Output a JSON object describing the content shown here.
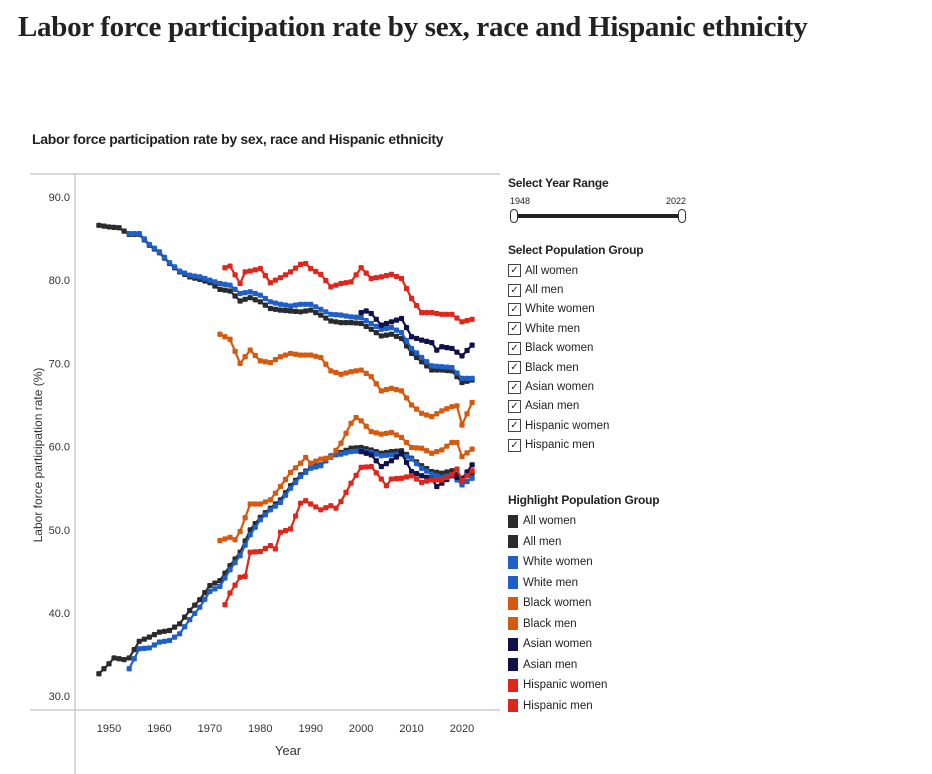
{
  "page_title": "Labor force participation rate by sex, race and Hispanic ethnicity",
  "controls": {
    "year_range_label": "Select Year Range",
    "year_min": "1948",
    "year_max": "2022",
    "population_label": "Select Population Group",
    "groups": [
      "All women",
      "All men",
      "White women",
      "White men",
      "Black women",
      "Black men",
      "Asian women",
      "Asian men",
      "Hispanic women",
      "Hispanic men"
    ],
    "highlight_label": "Highlight Population Group"
  },
  "chart_data": {
    "type": "line",
    "title": "Labor force participation rate by sex, race and Hispanic ethnicity",
    "xlabel": "Year",
    "ylabel": "Labor force participation rate (%)",
    "xlim": [
      1945,
      2025
    ],
    "ylim": [
      28,
      92
    ],
    "xticks": [
      "1950",
      "1960",
      "1970",
      "1980",
      "1990",
      "2000",
      "2010",
      "2020"
    ],
    "yticks": [
      "30.0",
      "40.0",
      "50.0",
      "60.0",
      "70.0",
      "80.0",
      "90.0"
    ],
    "grid": false,
    "series": [
      {
        "name": "All women",
        "color": "#2b2b2b",
        "points": [
          [
            1948,
            32.7
          ],
          [
            1950,
            33.9
          ],
          [
            1951,
            34.6
          ],
          [
            1953,
            34.4
          ],
          [
            1954,
            34.6
          ],
          [
            1956,
            36.6
          ],
          [
            1958,
            37.1
          ],
          [
            1960,
            37.7
          ],
          [
            1962,
            37.9
          ],
          [
            1964,
            38.7
          ],
          [
            1966,
            40.3
          ],
          [
            1968,
            41.6
          ],
          [
            1970,
            43.3
          ],
          [
            1972,
            43.9
          ],
          [
            1974,
            45.7
          ],
          [
            1976,
            47.3
          ],
          [
            1978,
            50.0
          ],
          [
            1980,
            51.5
          ],
          [
            1982,
            52.6
          ],
          [
            1984,
            53.6
          ],
          [
            1986,
            55.3
          ],
          [
            1988,
            56.6
          ],
          [
            1990,
            57.5
          ],
          [
            1992,
            57.8
          ],
          [
            1994,
            58.8
          ],
          [
            1996,
            59.3
          ],
          [
            1998,
            59.8
          ],
          [
            2000,
            59.9
          ],
          [
            2002,
            59.6
          ],
          [
            2004,
            59.2
          ],
          [
            2006,
            59.4
          ],
          [
            2008,
            59.5
          ],
          [
            2010,
            58.6
          ],
          [
            2012,
            57.7
          ],
          [
            2014,
            57.0
          ],
          [
            2016,
            56.8
          ],
          [
            2018,
            57.1
          ],
          [
            2020,
            56.2
          ],
          [
            2022,
            56.8
          ]
        ]
      },
      {
        "name": "All men",
        "color": "#2b2b2b",
        "points": [
          [
            1948,
            86.6
          ],
          [
            1950,
            86.4
          ],
          [
            1952,
            86.3
          ],
          [
            1954,
            85.5
          ],
          [
            1956,
            85.5
          ],
          [
            1958,
            84.2
          ],
          [
            1960,
            83.3
          ],
          [
            1962,
            82.0
          ],
          [
            1964,
            81.0
          ],
          [
            1966,
            80.4
          ],
          [
            1968,
            80.1
          ],
          [
            1970,
            79.7
          ],
          [
            1972,
            78.9
          ],
          [
            1974,
            78.7
          ],
          [
            1976,
            77.5
          ],
          [
            1978,
            77.9
          ],
          [
            1980,
            77.4
          ],
          [
            1982,
            76.6
          ],
          [
            1984,
            76.4
          ],
          [
            1986,
            76.3
          ],
          [
            1988,
            76.2
          ],
          [
            1990,
            76.4
          ],
          [
            1992,
            75.8
          ],
          [
            1994,
            75.1
          ],
          [
            1996,
            74.9
          ],
          [
            1998,
            74.9
          ],
          [
            2000,
            74.8
          ],
          [
            2002,
            74.1
          ],
          [
            2004,
            73.3
          ],
          [
            2006,
            73.5
          ],
          [
            2008,
            73.0
          ],
          [
            2010,
            71.2
          ],
          [
            2012,
            70.2
          ],
          [
            2014,
            69.2
          ],
          [
            2016,
            69.2
          ],
          [
            2018,
            69.1
          ],
          [
            2020,
            67.7
          ],
          [
            2022,
            68.0
          ]
        ]
      },
      {
        "name": "White women",
        "color": "#1f5fc8",
        "points": [
          [
            1954,
            33.3
          ],
          [
            1955,
            34.5
          ],
          [
            1956,
            35.7
          ],
          [
            1958,
            35.8
          ],
          [
            1960,
            36.5
          ],
          [
            1962,
            36.7
          ],
          [
            1964,
            37.5
          ],
          [
            1966,
            39.2
          ],
          [
            1968,
            40.7
          ],
          [
            1970,
            42.6
          ],
          [
            1972,
            43.2
          ],
          [
            1974,
            45.2
          ],
          [
            1976,
            46.9
          ],
          [
            1978,
            49.4
          ],
          [
            1980,
            51.2
          ],
          [
            1982,
            52.4
          ],
          [
            1984,
            53.3
          ],
          [
            1986,
            55.0
          ],
          [
            1988,
            56.4
          ],
          [
            1990,
            57.4
          ],
          [
            1992,
            57.7
          ],
          [
            1994,
            58.9
          ],
          [
            1996,
            59.1
          ],
          [
            1998,
            59.4
          ],
          [
            2000,
            59.5
          ],
          [
            2002,
            59.3
          ],
          [
            2004,
            58.9
          ],
          [
            2006,
            59.0
          ],
          [
            2008,
            59.1
          ],
          [
            2010,
            58.5
          ],
          [
            2012,
            57.4
          ],
          [
            2014,
            56.7
          ],
          [
            2016,
            56.3
          ],
          [
            2018,
            56.6
          ],
          [
            2020,
            55.4
          ],
          [
            2022,
            56.2
          ]
        ]
      },
      {
        "name": "White men",
        "color": "#1f5fc8",
        "points": [
          [
            1954,
            85.6
          ],
          [
            1956,
            85.6
          ],
          [
            1958,
            84.3
          ],
          [
            1960,
            83.4
          ],
          [
            1962,
            82.1
          ],
          [
            1964,
            81.1
          ],
          [
            1966,
            80.6
          ],
          [
            1968,
            80.4
          ],
          [
            1970,
            80.0
          ],
          [
            1972,
            79.6
          ],
          [
            1974,
            79.4
          ],
          [
            1976,
            78.4
          ],
          [
            1978,
            78.6
          ],
          [
            1980,
            78.2
          ],
          [
            1982,
            77.4
          ],
          [
            1984,
            77.1
          ],
          [
            1986,
            76.9
          ],
          [
            1988,
            77.1
          ],
          [
            1990,
            77.1
          ],
          [
            1992,
            76.5
          ],
          [
            1994,
            75.9
          ],
          [
            1996,
            75.8
          ],
          [
            1998,
            75.6
          ],
          [
            2000,
            75.5
          ],
          [
            2002,
            74.8
          ],
          [
            2004,
            74.1
          ],
          [
            2006,
            74.3
          ],
          [
            2008,
            73.7
          ],
          [
            2010,
            71.8
          ],
          [
            2012,
            70.7
          ],
          [
            2014,
            69.7
          ],
          [
            2016,
            69.6
          ],
          [
            2018,
            69.5
          ],
          [
            2020,
            68.2
          ],
          [
            2022,
            68.2
          ]
        ]
      },
      {
        "name": "Black women",
        "color": "#d55a0f",
        "points": [
          [
            1972,
            48.7
          ],
          [
            1974,
            49.1
          ],
          [
            1975,
            48.8
          ],
          [
            1976,
            49.8
          ],
          [
            1978,
            53.1
          ],
          [
            1980,
            53.1
          ],
          [
            1982,
            53.6
          ],
          [
            1984,
            55.2
          ],
          [
            1986,
            56.9
          ],
          [
            1988,
            58.0
          ],
          [
            1989,
            58.7
          ],
          [
            1990,
            58.0
          ],
          [
            1992,
            58.5
          ],
          [
            1994,
            58.7
          ],
          [
            1996,
            60.4
          ],
          [
            1998,
            62.8
          ],
          [
            1999,
            63.5
          ],
          [
            2000,
            63.1
          ],
          [
            2002,
            61.8
          ],
          [
            2004,
            61.5
          ],
          [
            2006,
            61.7
          ],
          [
            2008,
            61.1
          ],
          [
            2010,
            59.9
          ],
          [
            2012,
            59.8
          ],
          [
            2014,
            59.2
          ],
          [
            2016,
            59.6
          ],
          [
            2018,
            60.5
          ],
          [
            2019,
            60.5
          ],
          [
            2020,
            58.8
          ],
          [
            2022,
            59.7
          ]
        ]
      },
      {
        "name": "Black men",
        "color": "#d55a0f",
        "points": [
          [
            1972,
            73.5
          ],
          [
            1974,
            72.9
          ],
          [
            1976,
            70.0
          ],
          [
            1978,
            71.6
          ],
          [
            1980,
            70.3
          ],
          [
            1982,
            70.1
          ],
          [
            1984,
            70.8
          ],
          [
            1986,
            71.2
          ],
          [
            1988,
            71.0
          ],
          [
            1990,
            71.0
          ],
          [
            1992,
            70.7
          ],
          [
            1994,
            69.1
          ],
          [
            1996,
            68.7
          ],
          [
            1998,
            69.0
          ],
          [
            2000,
            69.2
          ],
          [
            2002,
            68.4
          ],
          [
            2004,
            66.7
          ],
          [
            2006,
            67.0
          ],
          [
            2008,
            66.7
          ],
          [
            2010,
            65.0
          ],
          [
            2012,
            64.0
          ],
          [
            2014,
            63.6
          ],
          [
            2016,
            64.3
          ],
          [
            2018,
            64.8
          ],
          [
            2019,
            64.9
          ],
          [
            2020,
            62.6
          ],
          [
            2022,
            65.3
          ]
        ]
      },
      {
        "name": "Asian women",
        "color": "#10104a",
        "points": [
          [
            2000,
            59.4
          ],
          [
            2002,
            59.0
          ],
          [
            2004,
            57.6
          ],
          [
            2006,
            58.3
          ],
          [
            2008,
            59.2
          ],
          [
            2010,
            57.0
          ],
          [
            2012,
            56.5
          ],
          [
            2014,
            56.1
          ],
          [
            2015,
            55.2
          ],
          [
            2016,
            55.6
          ],
          [
            2018,
            56.5
          ],
          [
            2020,
            56.1
          ],
          [
            2022,
            57.8
          ]
        ]
      },
      {
        "name": "Asian men",
        "color": "#10104a",
        "points": [
          [
            2000,
            76.1
          ],
          [
            2001,
            76.3
          ],
          [
            2002,
            76.0
          ],
          [
            2004,
            74.6
          ],
          [
            2006,
            75.0
          ],
          [
            2008,
            75.4
          ],
          [
            2010,
            73.2
          ],
          [
            2012,
            72.8
          ],
          [
            2014,
            72.5
          ],
          [
            2015,
            71.6
          ],
          [
            2016,
            72.0
          ],
          [
            2018,
            71.8
          ],
          [
            2020,
            70.9
          ],
          [
            2022,
            72.2
          ]
        ]
      },
      {
        "name": "Hispanic women",
        "color": "#e0261b",
        "points": [
          [
            1973,
            41.0
          ],
          [
            1974,
            42.4
          ],
          [
            1976,
            44.3
          ],
          [
            1977,
            44.4
          ],
          [
            1978,
            47.3
          ],
          [
            1980,
            47.4
          ],
          [
            1982,
            48.1
          ],
          [
            1983,
            47.7
          ],
          [
            1984,
            49.7
          ],
          [
            1986,
            50.1
          ],
          [
            1988,
            53.2
          ],
          [
            1989,
            53.5
          ],
          [
            1990,
            53.1
          ],
          [
            1992,
            52.4
          ],
          [
            1994,
            52.9
          ],
          [
            1995,
            52.6
          ],
          [
            1996,
            53.4
          ],
          [
            1998,
            55.6
          ],
          [
            2000,
            57.5
          ],
          [
            2002,
            57.6
          ],
          [
            2004,
            56.1
          ],
          [
            2005,
            55.3
          ],
          [
            2006,
            56.1
          ],
          [
            2008,
            56.2
          ],
          [
            2010,
            56.5
          ],
          [
            2012,
            55.7
          ],
          [
            2014,
            56.0
          ],
          [
            2016,
            56.0
          ],
          [
            2018,
            56.6
          ],
          [
            2019,
            57.3
          ],
          [
            2020,
            55.9
          ],
          [
            2022,
            57.1
          ]
        ]
      },
      {
        "name": "Hispanic men",
        "color": "#e0261b",
        "points": [
          [
            1973,
            81.5
          ],
          [
            1974,
            81.7
          ],
          [
            1976,
            79.6
          ],
          [
            1977,
            81.0
          ],
          [
            1978,
            81.1
          ],
          [
            1980,
            81.4
          ],
          [
            1982,
            79.7
          ],
          [
            1984,
            80.3
          ],
          [
            1986,
            81.0
          ],
          [
            1988,
            81.9
          ],
          [
            1989,
            82.0
          ],
          [
            1990,
            81.4
          ],
          [
            1992,
            80.7
          ],
          [
            1994,
            79.2
          ],
          [
            1996,
            79.6
          ],
          [
            1998,
            79.8
          ],
          [
            2000,
            81.5
          ],
          [
            2002,
            80.2
          ],
          [
            2004,
            80.4
          ],
          [
            2006,
            80.7
          ],
          [
            2008,
            80.2
          ],
          [
            2010,
            77.8
          ],
          [
            2012,
            76.1
          ],
          [
            2014,
            76.1
          ],
          [
            2016,
            75.9
          ],
          [
            2018,
            75.9
          ],
          [
            2020,
            75.0
          ],
          [
            2022,
            75.3
          ]
        ]
      }
    ]
  }
}
